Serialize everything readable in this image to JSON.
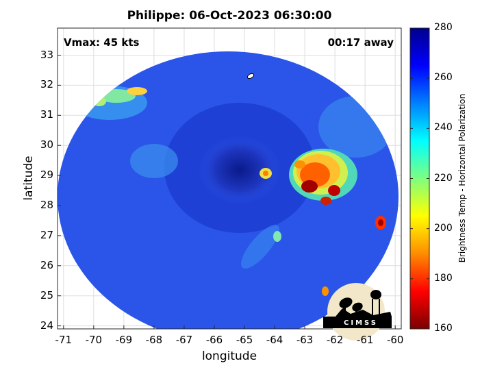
{
  "title": "Philippe: 06-Oct-2023 06:30:00",
  "annotations": {
    "vmax": "Vmax: 45 kts",
    "away": "00:17 away"
  },
  "axes": {
    "xlabel": "longitude",
    "ylabel": "latitude",
    "xticks": [
      "-71",
      "-70",
      "-69",
      "-68",
      "-67",
      "-66",
      "-65",
      "-64",
      "-63",
      "-62",
      "-61",
      "-60"
    ],
    "yticks": [
      "33",
      "32",
      "31",
      "30",
      "29",
      "28",
      "27",
      "26",
      "25",
      "24"
    ],
    "xlim": [
      -71.2,
      -59.8
    ],
    "ylim": [
      23.9,
      33.9
    ],
    "grid": true
  },
  "colorbar": {
    "label": "Brightness Temp - Horizontal Polarization",
    "ticks": [
      "280",
      "260",
      "240",
      "220",
      "200",
      "180",
      "160"
    ],
    "range": [
      160,
      280
    ],
    "colors": [
      "#7a0000",
      "#ff0000",
      "#ff8c00",
      "#ffff00",
      "#7fff7f",
      "#00ffff",
      "#0080ff",
      "#0000ff",
      "#00008c"
    ]
  },
  "logo": {
    "text": "CIMSS"
  },
  "map": {
    "swath_center_lon": -65.3,
    "swath_center_lat": 28.7,
    "background_color": "#2a55e8"
  }
}
